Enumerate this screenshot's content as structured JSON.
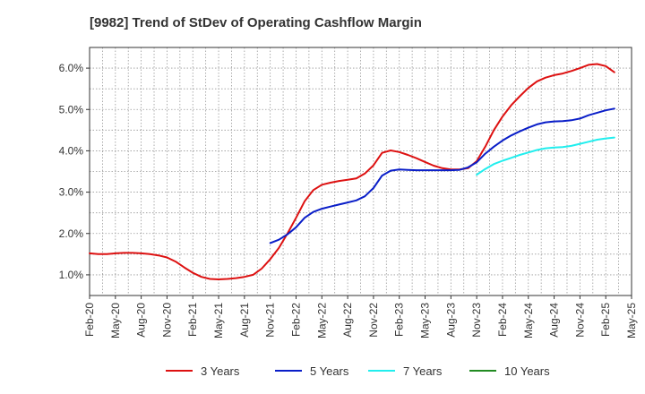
{
  "chart_data": {
    "type": "line",
    "title": "[9982]  Trend of StDev of Operating Cashflow Margin",
    "xlabel": "",
    "ylabel": "",
    "ylim": [
      0.5,
      6.5
    ],
    "y_ticks": [
      1.0,
      2.0,
      3.0,
      4.0,
      5.0,
      6.0
    ],
    "y_tick_labels": [
      "1.0%",
      "2.0%",
      "3.0%",
      "4.0%",
      "5.0%",
      "6.0%"
    ],
    "x_ticks": [
      "Feb-20",
      "May-20",
      "Aug-20",
      "Nov-20",
      "Feb-21",
      "May-21",
      "Aug-21",
      "Nov-21",
      "Feb-22",
      "May-22",
      "Aug-22",
      "Nov-22",
      "Feb-23",
      "May-23",
      "Aug-23",
      "Nov-23",
      "Feb-24",
      "May-24",
      "Aug-24",
      "Nov-24",
      "Feb-25",
      "May-25"
    ],
    "x_unit": "month index from Feb-20",
    "x_range": [
      0,
      63
    ],
    "grid": true,
    "legend_position": "bottom",
    "series": [
      {
        "name": "3 Years",
        "color": "#dd1111",
        "x": [
          0,
          1,
          2,
          3,
          4,
          5,
          6,
          7,
          8,
          9,
          10,
          11,
          12,
          13,
          14,
          15,
          16,
          17,
          18,
          19,
          20,
          21,
          22,
          23,
          24,
          25,
          26,
          27,
          28,
          29,
          30,
          31,
          32,
          33,
          34,
          35,
          36,
          37,
          38,
          39,
          40,
          41,
          42,
          43,
          44,
          45,
          46,
          47,
          48,
          49,
          50,
          51,
          52,
          53,
          54,
          55,
          56,
          57,
          58,
          59,
          60,
          61
        ],
        "y": [
          1.52,
          1.5,
          1.5,
          1.52,
          1.53,
          1.53,
          1.52,
          1.5,
          1.47,
          1.42,
          1.32,
          1.18,
          1.05,
          0.95,
          0.9,
          0.89,
          0.9,
          0.92,
          0.95,
          1.0,
          1.15,
          1.38,
          1.65,
          2.0,
          2.38,
          2.78,
          3.05,
          3.18,
          3.23,
          3.27,
          3.3,
          3.33,
          3.45,
          3.65,
          3.95,
          4.01,
          3.97,
          3.9,
          3.82,
          3.73,
          3.64,
          3.58,
          3.55,
          3.55,
          3.58,
          3.75,
          4.1,
          4.5,
          4.83,
          5.1,
          5.32,
          5.52,
          5.68,
          5.77,
          5.83,
          5.87,
          5.93,
          6.0,
          6.08,
          6.1,
          6.05,
          5.9
        ]
      },
      {
        "name": "5 Years",
        "color": "#0a1ec8",
        "x": [
          21,
          22,
          23,
          24,
          25,
          26,
          27,
          28,
          29,
          30,
          31,
          32,
          33,
          34,
          35,
          36,
          37,
          38,
          39,
          40,
          41,
          42,
          43,
          44,
          45,
          46,
          47,
          48,
          49,
          50,
          51,
          52,
          53,
          54,
          55,
          56,
          57,
          58,
          59,
          60,
          61
        ],
        "y": [
          1.77,
          1.85,
          1.98,
          2.15,
          2.38,
          2.52,
          2.6,
          2.65,
          2.7,
          2.75,
          2.8,
          2.9,
          3.1,
          3.4,
          3.52,
          3.55,
          3.54,
          3.53,
          3.53,
          3.53,
          3.53,
          3.53,
          3.54,
          3.6,
          3.72,
          3.93,
          4.1,
          4.25,
          4.37,
          4.47,
          4.56,
          4.64,
          4.69,
          4.71,
          4.72,
          4.74,
          4.78,
          4.86,
          4.92,
          4.98,
          5.02
        ]
      },
      {
        "name": "7 Years",
        "color": "#22eeee",
        "x": [
          45,
          46,
          47,
          48,
          49,
          50,
          51,
          52,
          53,
          54,
          55,
          56,
          57,
          58,
          59,
          60,
          61
        ],
        "y": [
          3.42,
          3.56,
          3.68,
          3.76,
          3.83,
          3.9,
          3.96,
          4.02,
          4.06,
          4.08,
          4.09,
          4.12,
          4.17,
          4.22,
          4.27,
          4.3,
          4.32
        ]
      },
      {
        "name": "10 Years",
        "color": "#228b22",
        "x": [],
        "y": []
      }
    ]
  }
}
